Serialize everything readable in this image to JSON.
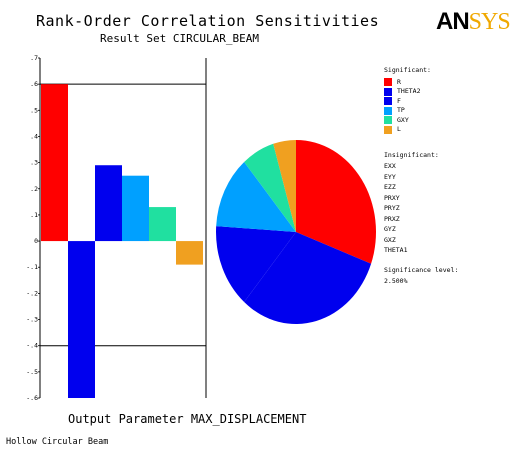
{
  "header": {
    "title": "Rank-Order Correlation Sensitivities",
    "subtitle": "Result Set CIRCULAR_BEAM",
    "logo_main": "AN",
    "logo_accent": "SYS"
  },
  "chart_data": [
    {
      "type": "bar",
      "categories": [
        "R",
        "THETA2",
        "F",
        "TP",
        "GXY",
        "L"
      ],
      "values": [
        0.6,
        -0.6,
        0.29,
        0.25,
        0.13,
        -0.09
      ],
      "colors": [
        "#ff0000",
        "#0000ee",
        "#0000ee",
        "#00a0ff",
        "#20e0a0",
        "#f0a020"
      ],
      "ylim": [
        -0.6,
        0.7
      ],
      "yticks": [
        ".7",
        ".6",
        ".5",
        ".4",
        ".3",
        ".2",
        ".1",
        "0",
        "-.1",
        "-.2",
        "-.3",
        "-.4",
        "-.5",
        "-.6"
      ],
      "ytick_values": [
        0.7,
        0.6,
        0.5,
        0.4,
        0.3,
        0.2,
        0.1,
        0,
        -0.1,
        -0.2,
        -0.3,
        -0.4,
        -0.5,
        -0.6
      ],
      "hlines": [
        0.6,
        -0.4
      ],
      "xlabel": "Output Parameter MAX_DISPLACEMENT"
    },
    {
      "type": "pie",
      "labels": [
        "R",
        "THETA2",
        "F",
        "TP",
        "GXY",
        "L"
      ],
      "values": [
        0.6,
        0.6,
        0.29,
        0.25,
        0.13,
        0.09
      ],
      "colors": [
        "#ff0000",
        "#0000ee",
        "#0000ee",
        "#00a0ff",
        "#20e0a0",
        "#f0a020"
      ]
    }
  ],
  "legend": {
    "significant_title": "Significant:",
    "significant": [
      {
        "label": "R",
        "color": "#ff0000"
      },
      {
        "label": "THETA2",
        "color": "#0000ee"
      },
      {
        "label": "F",
        "color": "#0000ee"
      },
      {
        "label": "TP",
        "color": "#00a0ff"
      },
      {
        "label": "GXY",
        "color": "#20e0a0"
      },
      {
        "label": "L",
        "color": "#f0a020"
      }
    ],
    "insignificant_title": "Insignificant:",
    "insignificant": [
      "EXX",
      "EYY",
      "EZZ",
      "PRXY",
      "PRYZ",
      "PRXZ",
      "GYZ",
      "GXZ",
      "THETA1"
    ],
    "significance_title": "Significance level:",
    "significance_value": "2.500%"
  },
  "footer": {
    "text": "Hollow Circular Beam"
  }
}
